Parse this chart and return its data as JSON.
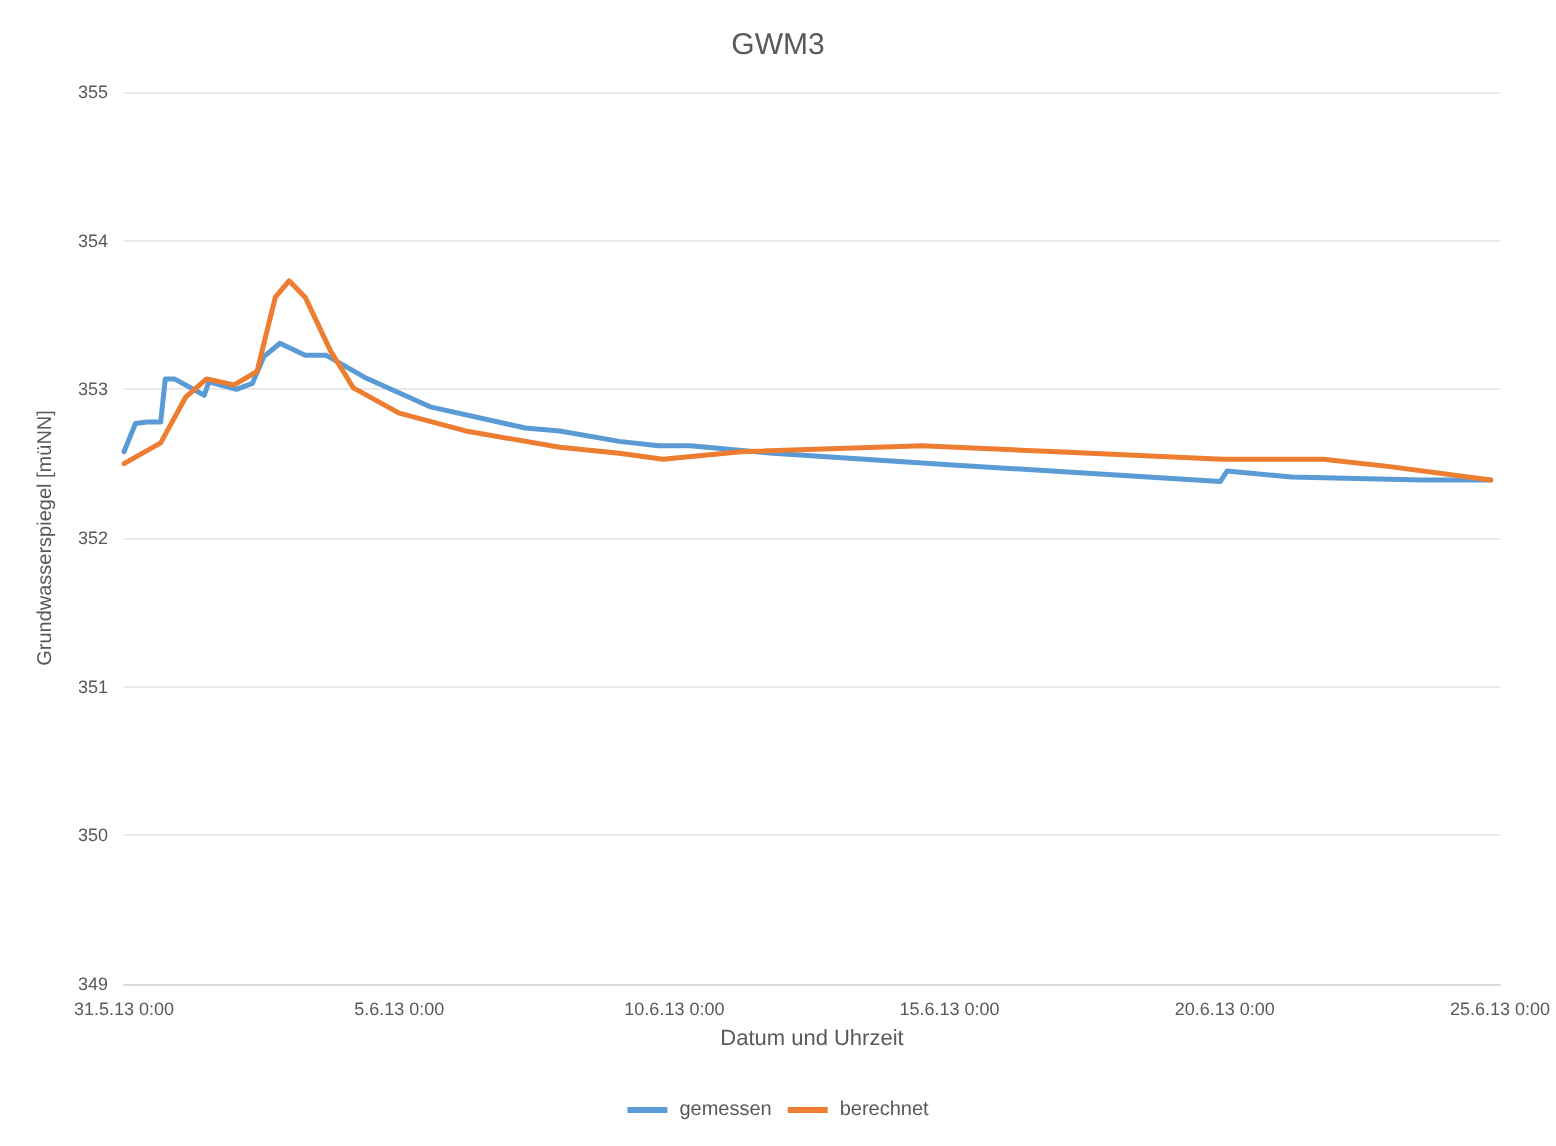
{
  "chart_data": {
    "type": "line",
    "title": "GWM3",
    "xlabel": "Datum und Uhrzeit",
    "ylabel": "Grundwasserspiegel [müNN]",
    "xlim": [
      "--05-31T00:00",
      "--06-25T00:00"
    ],
    "xticks": [
      {
        "value": "--05-31T00:00",
        "label": "31.5.13 0:00"
      },
      {
        "value": "--06-05T00:00",
        "label": "5.6.13 0:00"
      },
      {
        "value": "--06-10T00:00",
        "label": "10.6.13 0:00"
      },
      {
        "value": "--06-15T00:00",
        "label": "15.6.13 0:00"
      },
      {
        "value": "--06-20T00:00",
        "label": "20.6.13 0:00"
      },
      {
        "value": "--06-25T00:00",
        "label": "25.6.13 0:00"
      }
    ],
    "ylim": [
      349,
      355
    ],
    "yticks": [
      349,
      350,
      351,
      352,
      353,
      354,
      355
    ],
    "grid": "y",
    "legend": "bottom",
    "marker": "none",
    "line_style": "solid",
    "series": [
      {
        "name": "gemessen",
        "color": "#5b9bd5",
        "x": [
          "--05-31T00:00",
          "--05-31T05:00",
          "--05-31T10:00",
          "--05-31T16:00",
          "--05-31T18:00",
          "--05-31T22:00",
          "--06-01T11:00",
          "--06-01T13:00",
          "--06-02T01:00",
          "--06-02T08:00",
          "--06-02T13:00",
          "--06-02T20:00",
          "--06-03T07:00",
          "--06-03T16:00",
          "--06-04T09:00",
          "--06-05T14:00",
          "--06-07T07:00",
          "--06-07T22:00",
          "--06-09T00:00",
          "--06-09T17:00",
          "--06-10T07:00",
          "--06-11T19:00",
          "--06-15T03:00",
          "--06-18T04:00",
          "--06-19T22:00",
          "--06-20T01:00",
          "--06-21T05:00",
          "--06-23T14:00",
          "--06-24T20:00"
        ],
        "values": [
          352.58,
          352.77,
          352.78,
          352.78,
          353.07,
          353.07,
          352.96,
          353.05,
          353.0,
          353.04,
          353.22,
          353.31,
          353.23,
          353.23,
          353.08,
          352.88,
          352.74,
          352.72,
          352.65,
          352.62,
          352.62,
          352.57,
          352.49,
          352.42,
          352.38,
          352.45,
          352.41,
          352.39,
          352.39
        ]
      },
      {
        "name": "berechnet",
        "color": "#ed7d31",
        "x": [
          "--05-31T00:00",
          "--05-31T16:00",
          "--06-01T03:00",
          "--06-01T12:00",
          "--06-02T00:00",
          "--06-02T10:00",
          "--06-02T18:00",
          "--06-03T00:00",
          "--06-03T07:00",
          "--06-03T18:00",
          "--06-04T04:00",
          "--06-05T00:00",
          "--06-06T05:00",
          "--06-07T22:00",
          "--06-09T00:00",
          "--06-09T19:00",
          "--06-11T05:00",
          "--06-14T12:00",
          "--06-16T23:00",
          "--06-19T23:00",
          "--06-21T19:00",
          "--06-23T00:00",
          "--06-24T20:00"
        ],
        "values": [
          352.5,
          352.64,
          352.95,
          353.07,
          353.03,
          353.12,
          353.62,
          353.73,
          353.62,
          353.26,
          353.01,
          352.84,
          352.72,
          352.61,
          352.57,
          352.53,
          352.58,
          352.62,
          352.58,
          352.53,
          352.53,
          352.48,
          352.39
        ]
      }
    ]
  }
}
